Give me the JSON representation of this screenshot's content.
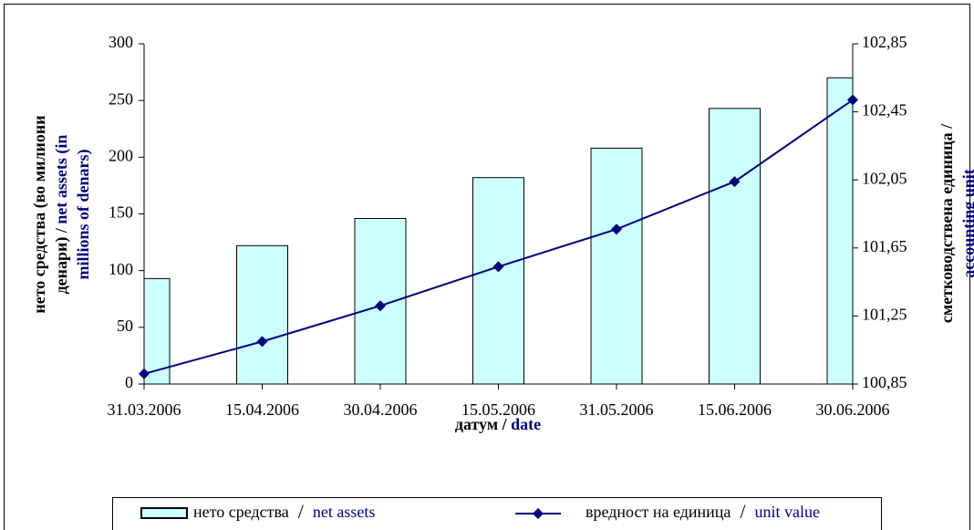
{
  "chart_data": {
    "type": "bar_line",
    "categories": [
      "31.03.2006",
      "15.04.2006",
      "30.04.2006",
      "15.05.2006",
      "31.05.2006",
      "15.06.2006",
      "30.06.2006"
    ],
    "series": [
      {
        "name": [
          "нето средства",
          "/",
          "net assets"
        ],
        "type": "bar",
        "color": "#ccffff",
        "values": [
          93,
          122,
          146,
          182,
          208,
          243,
          270
        ]
      },
      {
        "name": [
          "вредност на единица",
          "/",
          "unit value"
        ],
        "type": "line",
        "axis": "y2",
        "color": "#000080",
        "values": [
          100.91,
          101.1,
          101.31,
          101.54,
          101.76,
          102.04,
          102.52
        ]
      }
    ],
    "ylim": [
      0,
      300
    ],
    "yticks": [
      0,
      50,
      100,
      150,
      200,
      250,
      300
    ],
    "y2lim": [
      100.85,
      102.85
    ],
    "y2ticks": [
      {
        "value": 100.85,
        "label": "100,85"
      },
      {
        "value": 101.25,
        "label": "101,25"
      },
      {
        "value": 101.65,
        "label": "101,65"
      },
      {
        "value": 102.05,
        "label": "102,05"
      },
      {
        "value": 102.45,
        "label": "102,45"
      },
      {
        "value": 102.85,
        "label": "102,85"
      }
    ],
    "y_label": [
      [
        "нето средства (во милиони"
      ],
      [
        "денари) / ",
        "net assets (in"
      ],
      [
        "millions of denars)"
      ]
    ],
    "y2_label": [
      [
        "сметководствена единица /"
      ],
      [
        "accounting unit"
      ]
    ],
    "x_label": [
      "датум / ",
      "date"
    ],
    "grid": false,
    "legend": "bottom"
  }
}
